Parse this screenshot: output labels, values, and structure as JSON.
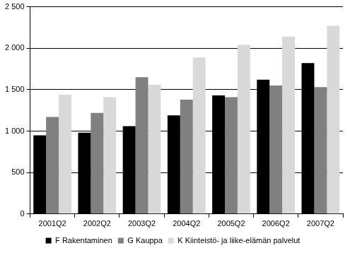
{
  "chart_data": {
    "type": "bar",
    "categories": [
      "2001Q2",
      "2002Q2",
      "2003Q2",
      "2004Q2",
      "2005Q2",
      "2006Q2",
      "2007Q2"
    ],
    "series": [
      {
        "name": "F Rakentaminen",
        "color": "#000000",
        "values": [
          950,
          980,
          1060,
          1190,
          1430,
          1620,
          1820
        ]
      },
      {
        "name": "G Kauppa",
        "color": "#808080",
        "values": [
          1170,
          1220,
          1650,
          1380,
          1410,
          1550,
          1530
        ]
      },
      {
        "name": "K Kiinteistö- ja liike-elämän palvelut",
        "color": "#d9d9d9",
        "values": [
          1440,
          1410,
          1560,
          1890,
          2040,
          2140,
          2270
        ]
      }
    ],
    "ylim": [
      0,
      2500
    ],
    "yticks": [
      0,
      500,
      {
        "value": 1000,
        "label": "1 000"
      },
      {
        "value": 1500,
        "label": "1 500"
      },
      {
        "value": 2000,
        "label": "2 000"
      },
      {
        "value": 2500,
        "label": "2 500"
      }
    ],
    "grid": true,
    "legend": "bottom"
  }
}
